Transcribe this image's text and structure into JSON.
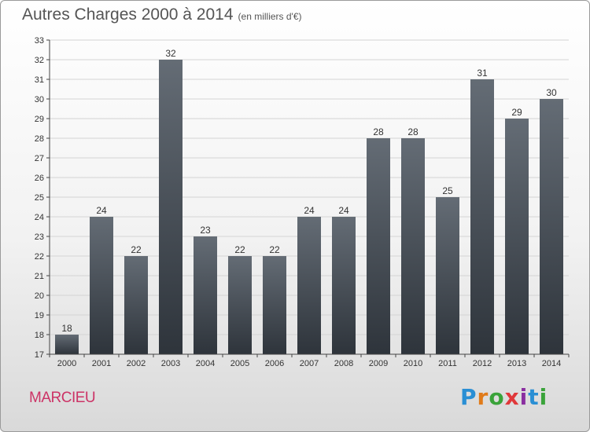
{
  "title": "Autres Charges 2000 à 2014",
  "subtitle": "(en milliers d'€)",
  "commune": "MARCIEU",
  "logo": {
    "text": "Proxiti",
    "colors": [
      "#2a8fd4",
      "#e07b1a",
      "#3aa33a",
      "#e0383a",
      "#8a2ea0",
      "#2a8fd4",
      "#3aa33a"
    ]
  },
  "chart_data": {
    "type": "bar",
    "title": "Autres Charges 2000 à 2014",
    "subtitle": "(en milliers d'€)",
    "categories": [
      "2000",
      "2001",
      "2002",
      "2003",
      "2004",
      "2005",
      "2006",
      "2007",
      "2008",
      "2009",
      "2010",
      "2011",
      "2012",
      "2013",
      "2014"
    ],
    "values": [
      18,
      24,
      22,
      32,
      23,
      22,
      22,
      24,
      24,
      28,
      28,
      25,
      31,
      29,
      30
    ],
    "ylim": [
      17,
      33
    ],
    "yticks": [
      17,
      18,
      19,
      20,
      21,
      22,
      23,
      24,
      25,
      26,
      27,
      28,
      29,
      30,
      31,
      32,
      33
    ],
    "grid": "horizontal",
    "bar_color": "#4a525b"
  }
}
